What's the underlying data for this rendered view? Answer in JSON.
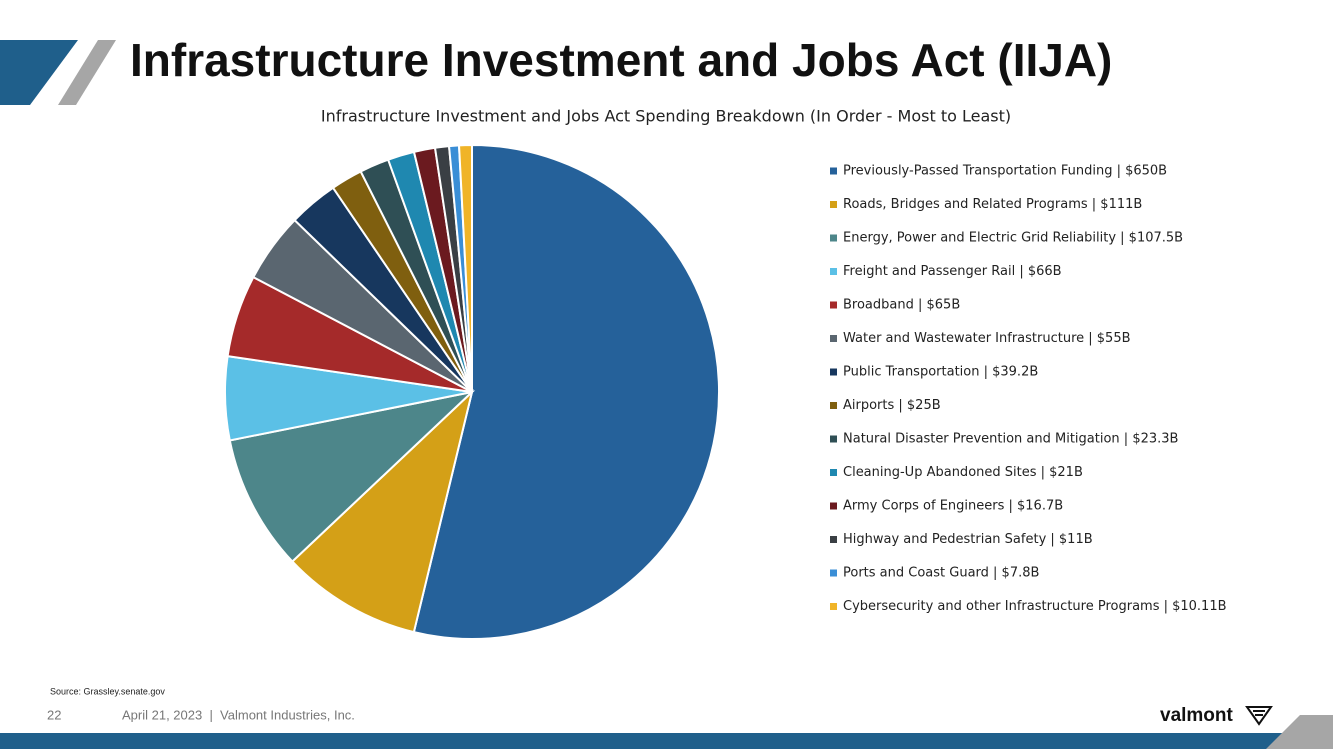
{
  "slide_title": "Infrastructure Investment and Jobs Act (IIJA)",
  "chart_data": {
    "type": "pie",
    "title": "Infrastructure Investment and Jobs Act Spending Breakdown (In Order - Most to Least)",
    "categories": [
      "Previously-Passed Transportation Funding | $650B",
      "Roads, Bridges and Related Programs | $111B",
      "Energy, Power and Electric Grid Reliability | $107.5B",
      "Freight and Passenger Rail | $66B",
      "Broadband | $65B",
      "Water and Wastewater Infrastructure | $55B",
      "Public Transportation | $39.2B",
      "Airports | $25B",
      "Natural Disaster Prevention and Mitigation | $23.3B",
      "Cleaning-Up Abandoned Sites | $21B",
      "Army Corps of Engineers | $16.7B",
      "Highway and Pedestrian Safety | $11B",
      "Ports and Coast Guard | $7.8B",
      "Cybersecurity and other Infrastructure Programs | $10.11B"
    ],
    "values": [
      650,
      111,
      107.5,
      66,
      65,
      55,
      39.2,
      25,
      23.3,
      21,
      16.7,
      11,
      7.8,
      10.11
    ],
    "colors": [
      "#25619a",
      "#d4a017",
      "#4d868a",
      "#5bc0e6",
      "#a52a2a",
      "#5a6670",
      "#17375e",
      "#7f5f0f",
      "#2f4f55",
      "#1f88b0",
      "#6b1a1f",
      "#3a3f44",
      "#3a8ed6",
      "#f0b428"
    ],
    "legend": "right"
  },
  "source": "Source: Grassley.senate.gov",
  "footer": {
    "page": "22",
    "text": "April 21, 2023  |  Valmont Industries, Inc.",
    "logo": "valmont"
  }
}
